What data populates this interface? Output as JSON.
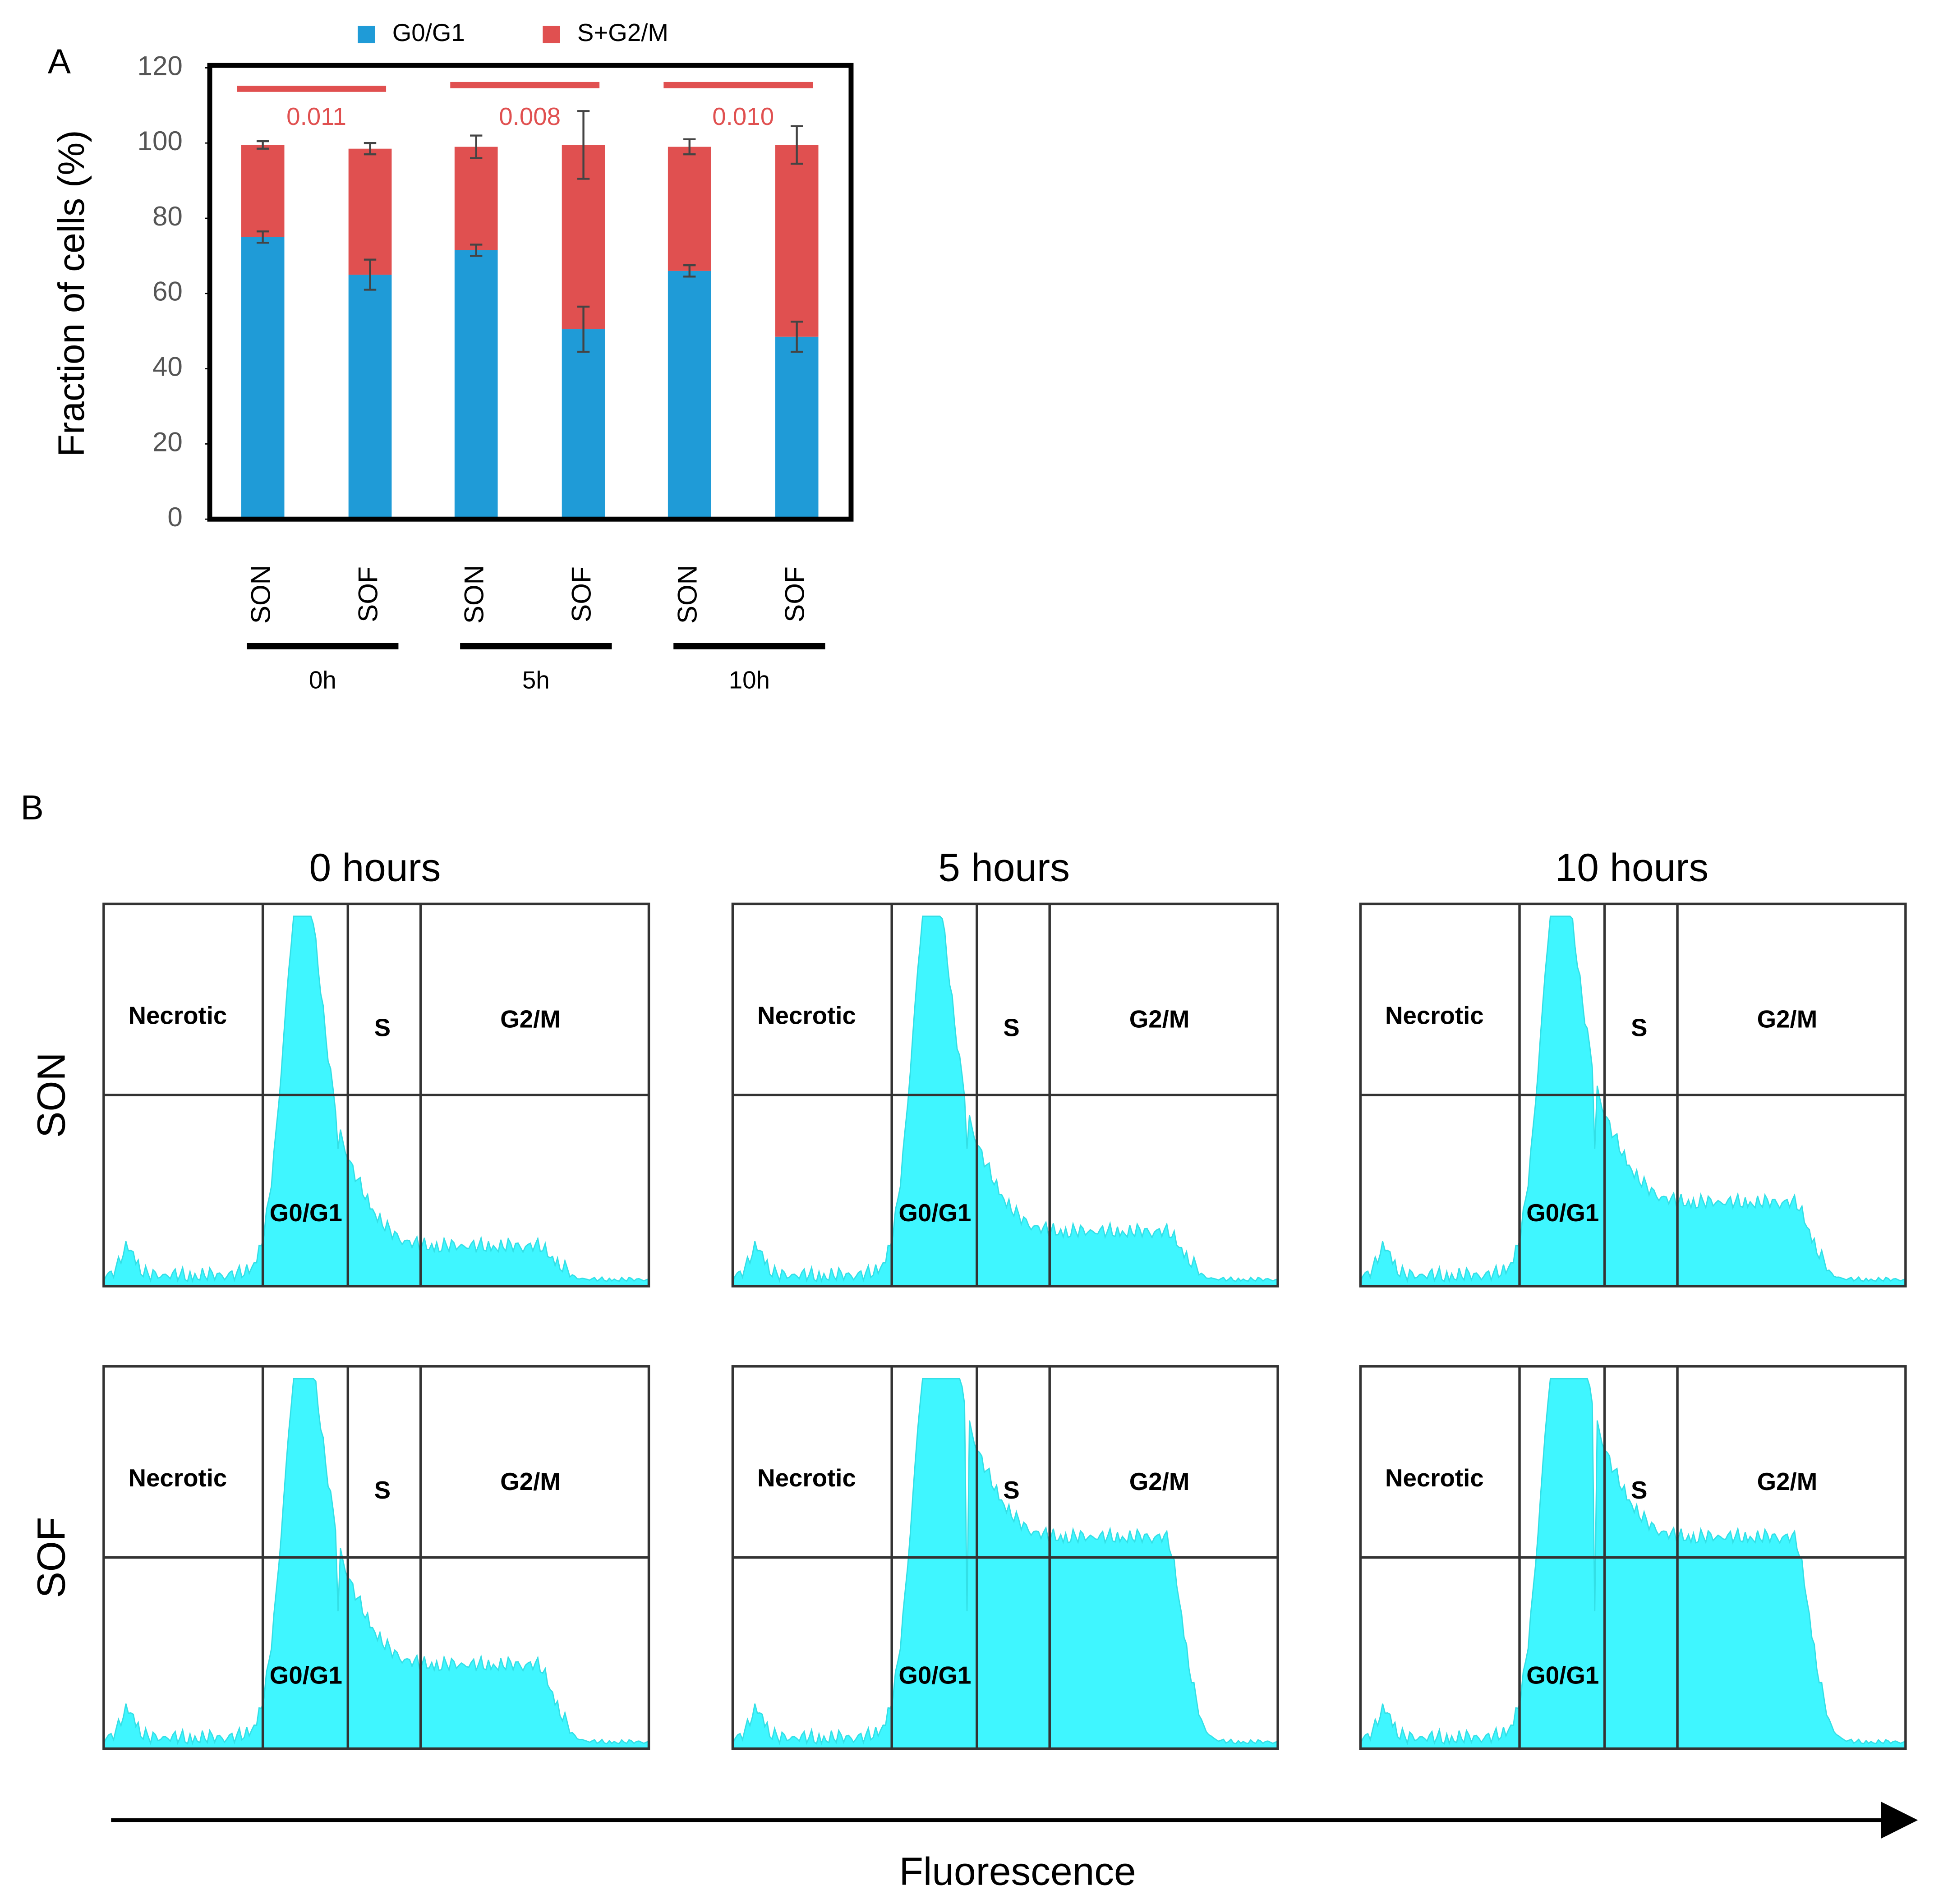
{
  "chart_data": {
    "type": "bar",
    "stacked": true,
    "panel_label": "A",
    "ylabel": "Fraction of cells (%)",
    "categories": [
      "SON",
      "SOF",
      "SON",
      "SOF",
      "SON",
      "SOF"
    ],
    "groups": [
      "0h",
      "5h",
      "10h"
    ],
    "series": [
      {
        "name": "G0/G1",
        "color": "#1f9bd7",
        "values": [
          75,
          65,
          71.5,
          50.5,
          66,
          48.5
        ],
        "errors": [
          1.5,
          4,
          1.5,
          6,
          1.5,
          4
        ]
      },
      {
        "name": "S+G2/M",
        "color": "#e05050",
        "values": [
          24.5,
          33.5,
          27.5,
          49,
          33,
          51
        ],
        "errors": [
          1,
          1.5,
          3,
          9,
          2,
          5
        ]
      }
    ],
    "annotations": [
      "0.011",
      "0.008",
      "0.010"
    ],
    "ylim": [
      0,
      120
    ],
    "yticks": [
      0,
      20,
      40,
      60,
      80,
      100,
      120
    ],
    "legend": "top",
    "grid": false
  },
  "panel_b": {
    "label": "B",
    "columns": [
      "0 hours",
      "5 hours",
      "10 hours"
    ],
    "rows": [
      "SON",
      "SOF"
    ],
    "plots": [
      {
        "gates": [
          "Necrotic",
          "S",
          "G2/M",
          "G0/G1"
        ]
      },
      {
        "gates": [
          "Necrotic",
          "S",
          "G2/M",
          "G0/G1"
        ]
      },
      {
        "gates": [
          "Necrotic",
          "S",
          "G2/M",
          "G0/G1"
        ]
      },
      {
        "gates": [
          "Necrotic",
          "S",
          "G2/M",
          "G0/G1"
        ]
      },
      {
        "gates": [
          "Necrotic",
          "S",
          "G2/M",
          "G0/G1"
        ]
      },
      {
        "gates": [
          "Necrotic",
          "S",
          "G2/M",
          "G0/G1"
        ]
      }
    ],
    "xlabel": "Fluorescence"
  }
}
